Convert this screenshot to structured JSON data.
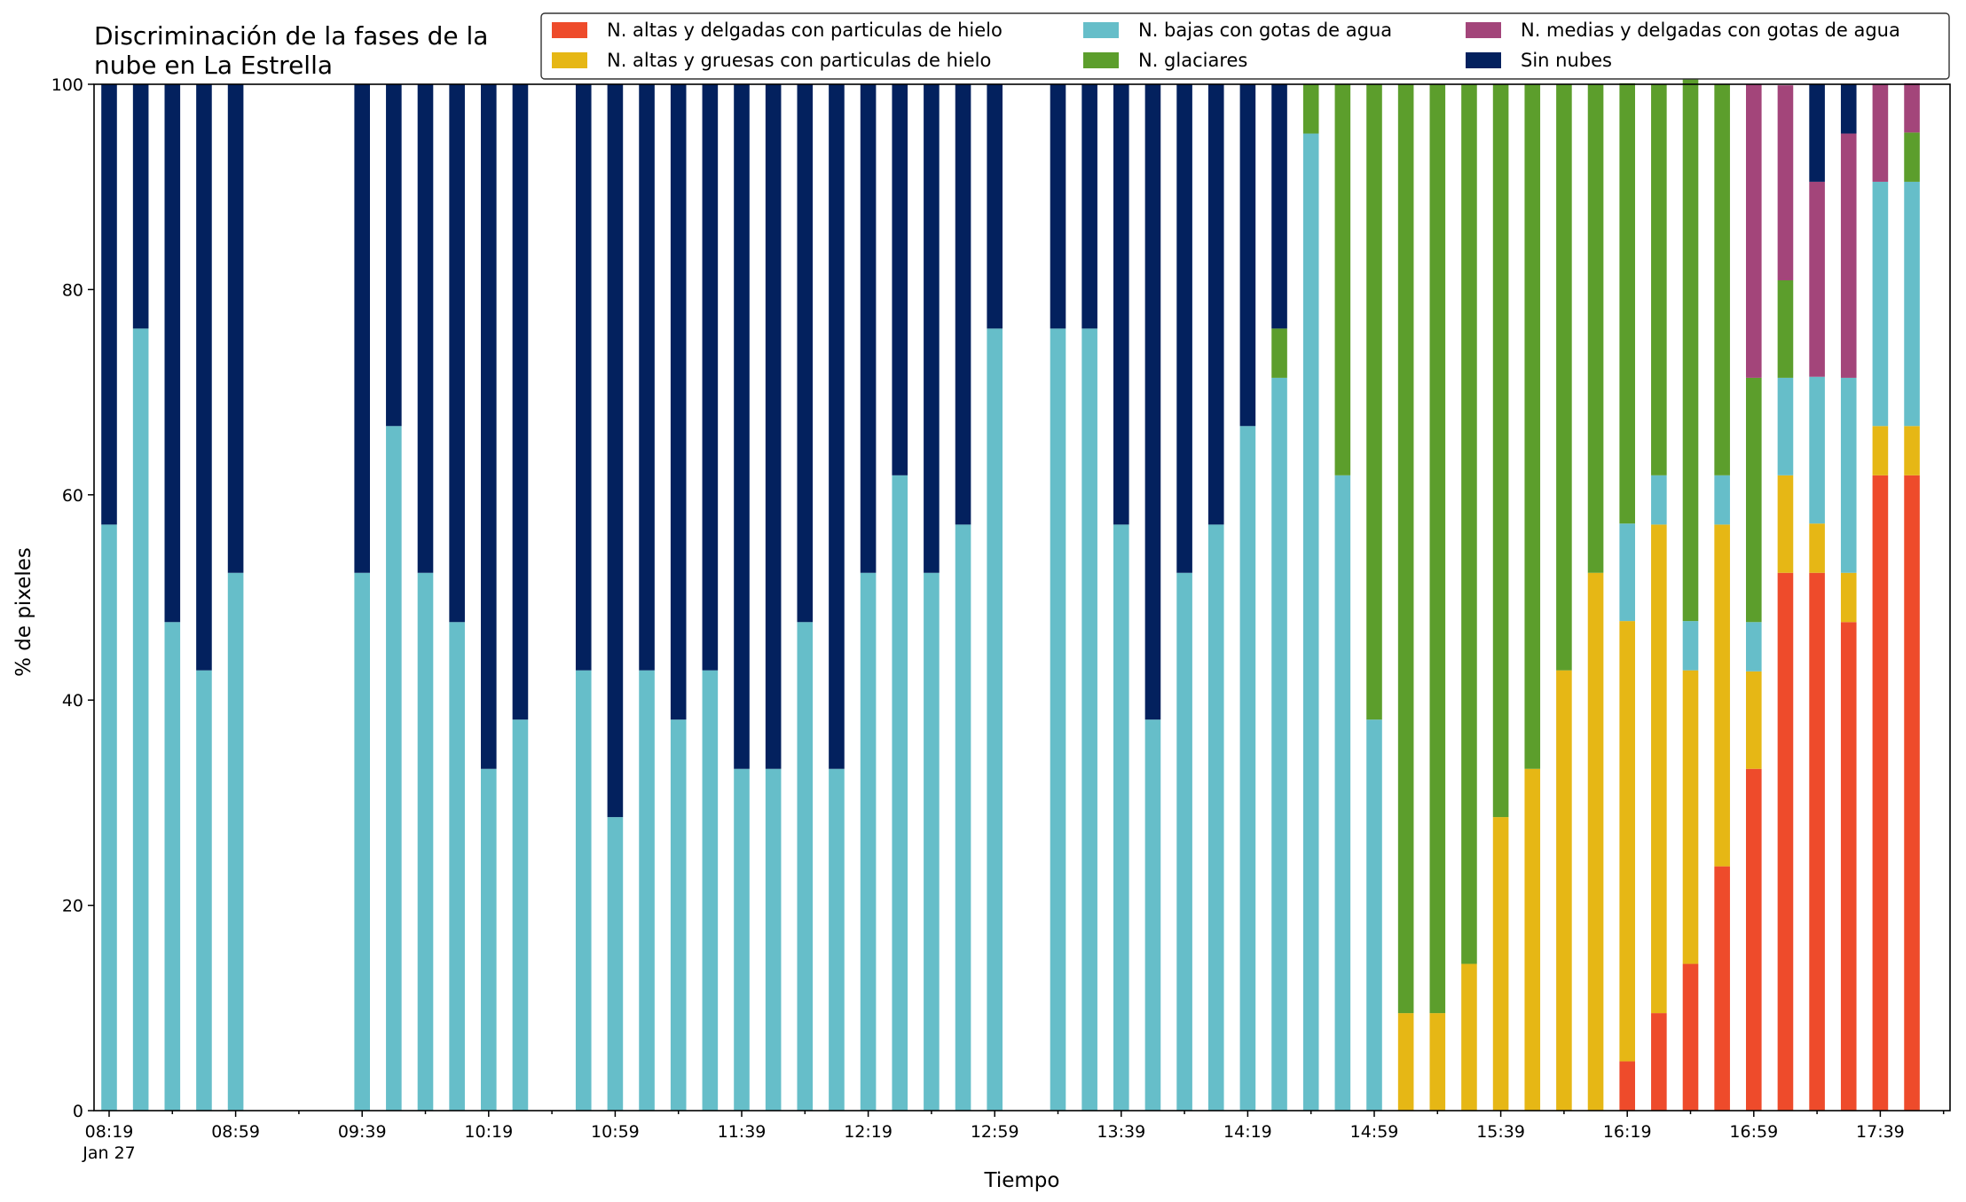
{
  "chart_data": {
    "type": "bar",
    "stacked": true,
    "title_lines": [
      "Discriminación de la fases de la",
      "nube en La Estrella"
    ],
    "xlabel": "Tiempo",
    "ylabel": "% de pixeles",
    "ylim": [
      0,
      100
    ],
    "yticks": [
      0,
      20,
      40,
      60,
      80,
      100
    ],
    "x_start": "08:19",
    "x_step_minutes": 10,
    "x_tick_labels": [
      {
        "index": 0,
        "label": "08:19",
        "sublabel": "Jan 27"
      },
      {
        "index": 4,
        "label": "08:59"
      },
      {
        "index": 8,
        "label": "09:39"
      },
      {
        "index": 12,
        "label": "10:19"
      },
      {
        "index": 16,
        "label": "10:59"
      },
      {
        "index": 20,
        "label": "11:39"
      },
      {
        "index": 24,
        "label": "12:19"
      },
      {
        "index": 28,
        "label": "12:59"
      },
      {
        "index": 32,
        "label": "13:39"
      },
      {
        "index": 36,
        "label": "14:19"
      },
      {
        "index": 40,
        "label": "14:59"
      },
      {
        "index": 44,
        "label": "15:39"
      },
      {
        "index": 48,
        "label": "16:19"
      },
      {
        "index": 52,
        "label": "16:59"
      },
      {
        "index": 56,
        "label": "17:39"
      }
    ],
    "legend_placement": "top-right",
    "grid": false,
    "series": [
      {
        "name": "N. altas y delgadas con particulas de hielo",
        "color": "#ee4b2b",
        "values": [
          0,
          0,
          0,
          0,
          0,
          null,
          null,
          null,
          0,
          0,
          0,
          0,
          0,
          0,
          null,
          0,
          0,
          0,
          0,
          0,
          0,
          0,
          0,
          0,
          0,
          0,
          0,
          0,
          0,
          null,
          0,
          0,
          0,
          0,
          0,
          0,
          0,
          0,
          0,
          0,
          0,
          0,
          0,
          0,
          0,
          0,
          0,
          0,
          4.8,
          9.5,
          14.3,
          23.8,
          33.3,
          52.4,
          52.4,
          47.6,
          61.9,
          61.9
        ]
      },
      {
        "name": "N. altas y gruesas con particulas de hielo",
        "color": "#e6b715",
        "values": [
          0,
          0,
          0,
          0,
          0,
          null,
          null,
          null,
          0,
          0,
          0,
          0,
          0,
          0,
          null,
          0,
          0,
          0,
          0,
          0,
          0,
          0,
          0,
          0,
          0,
          0,
          0,
          0,
          0,
          null,
          0,
          0,
          0,
          0,
          0,
          0,
          0,
          0,
          0,
          0,
          0,
          9.5,
          9.5,
          14.3,
          28.6,
          33.3,
          42.9,
          52.4,
          42.9,
          47.6,
          28.6,
          33.3,
          9.5,
          9.5,
          4.8,
          4.8,
          4.8,
          4.8
        ]
      },
      {
        "name": "N. bajas con gotas de agua",
        "color": "#66bec9",
        "values": [
          57.1,
          76.2,
          47.6,
          42.9,
          52.4,
          null,
          null,
          null,
          52.4,
          66.7,
          52.4,
          47.6,
          33.3,
          38.1,
          null,
          42.9,
          28.6,
          42.9,
          38.1,
          42.9,
          33.3,
          33.3,
          47.6,
          33.3,
          52.4,
          61.9,
          52.4,
          57.1,
          76.2,
          null,
          76.2,
          76.2,
          57.1,
          38.1,
          52.4,
          57.1,
          66.7,
          71.4,
          95.2,
          61.9,
          38.1,
          0,
          0,
          0,
          0,
          0,
          0,
          0,
          9.5,
          4.8,
          4.8,
          4.8,
          4.8,
          9.5,
          14.3,
          19.0,
          23.8,
          23.8
        ]
      },
      {
        "name": "N. glaciares",
        "color": "#5c9e2c",
        "values": [
          0,
          0,
          0,
          0,
          0,
          null,
          null,
          null,
          0,
          0,
          0,
          0,
          0,
          0,
          null,
          0,
          0,
          0,
          0,
          0,
          0,
          0,
          0,
          0,
          0,
          0,
          0,
          0,
          0,
          null,
          0,
          0,
          0,
          0,
          0,
          0,
          0,
          4.8,
          4.8,
          38.1,
          61.9,
          90.5,
          90.5,
          85.7,
          71.4,
          66.7,
          57.1,
          47.6,
          42.9,
          38.1,
          57.1,
          38.1,
          23.8,
          9.5,
          0,
          0,
          0,
          4.8
        ]
      },
      {
        "name": "N. medias y delgadas con gotas de agua",
        "color": "#a3457a",
        "values": [
          0,
          0,
          0,
          0,
          0,
          null,
          null,
          null,
          0,
          0,
          0,
          0,
          0,
          0,
          null,
          0,
          0,
          0,
          0,
          0,
          0,
          0,
          0,
          0,
          0,
          0,
          0,
          0,
          0,
          null,
          0,
          0,
          0,
          0,
          0,
          0,
          0,
          0,
          0,
          0,
          0,
          0,
          0,
          0,
          0,
          0,
          0,
          0,
          0,
          0,
          0,
          0,
          28.6,
          19.0,
          19.0,
          23.8,
          9.5,
          4.8
        ]
      },
      {
        "name": "Sin nubes",
        "color": "#03215e",
        "values": [
          42.9,
          23.8,
          52.4,
          57.1,
          47.6,
          null,
          null,
          null,
          47.6,
          33.3,
          47.6,
          52.4,
          66.7,
          61.9,
          null,
          57.1,
          71.4,
          57.1,
          61.9,
          57.1,
          66.7,
          66.7,
          52.4,
          66.7,
          47.6,
          38.1,
          47.6,
          42.9,
          23.8,
          null,
          23.8,
          23.8,
          42.9,
          61.9,
          47.6,
          42.9,
          33.3,
          23.8,
          0,
          0,
          0,
          0,
          0,
          0,
          0,
          0,
          0,
          0,
          0,
          0,
          0,
          0,
          0,
          0,
          9.5,
          4.8,
          0,
          0
        ]
      }
    ],
    "legend_order": [
      0,
      1,
      2,
      3,
      4,
      5
    ]
  }
}
